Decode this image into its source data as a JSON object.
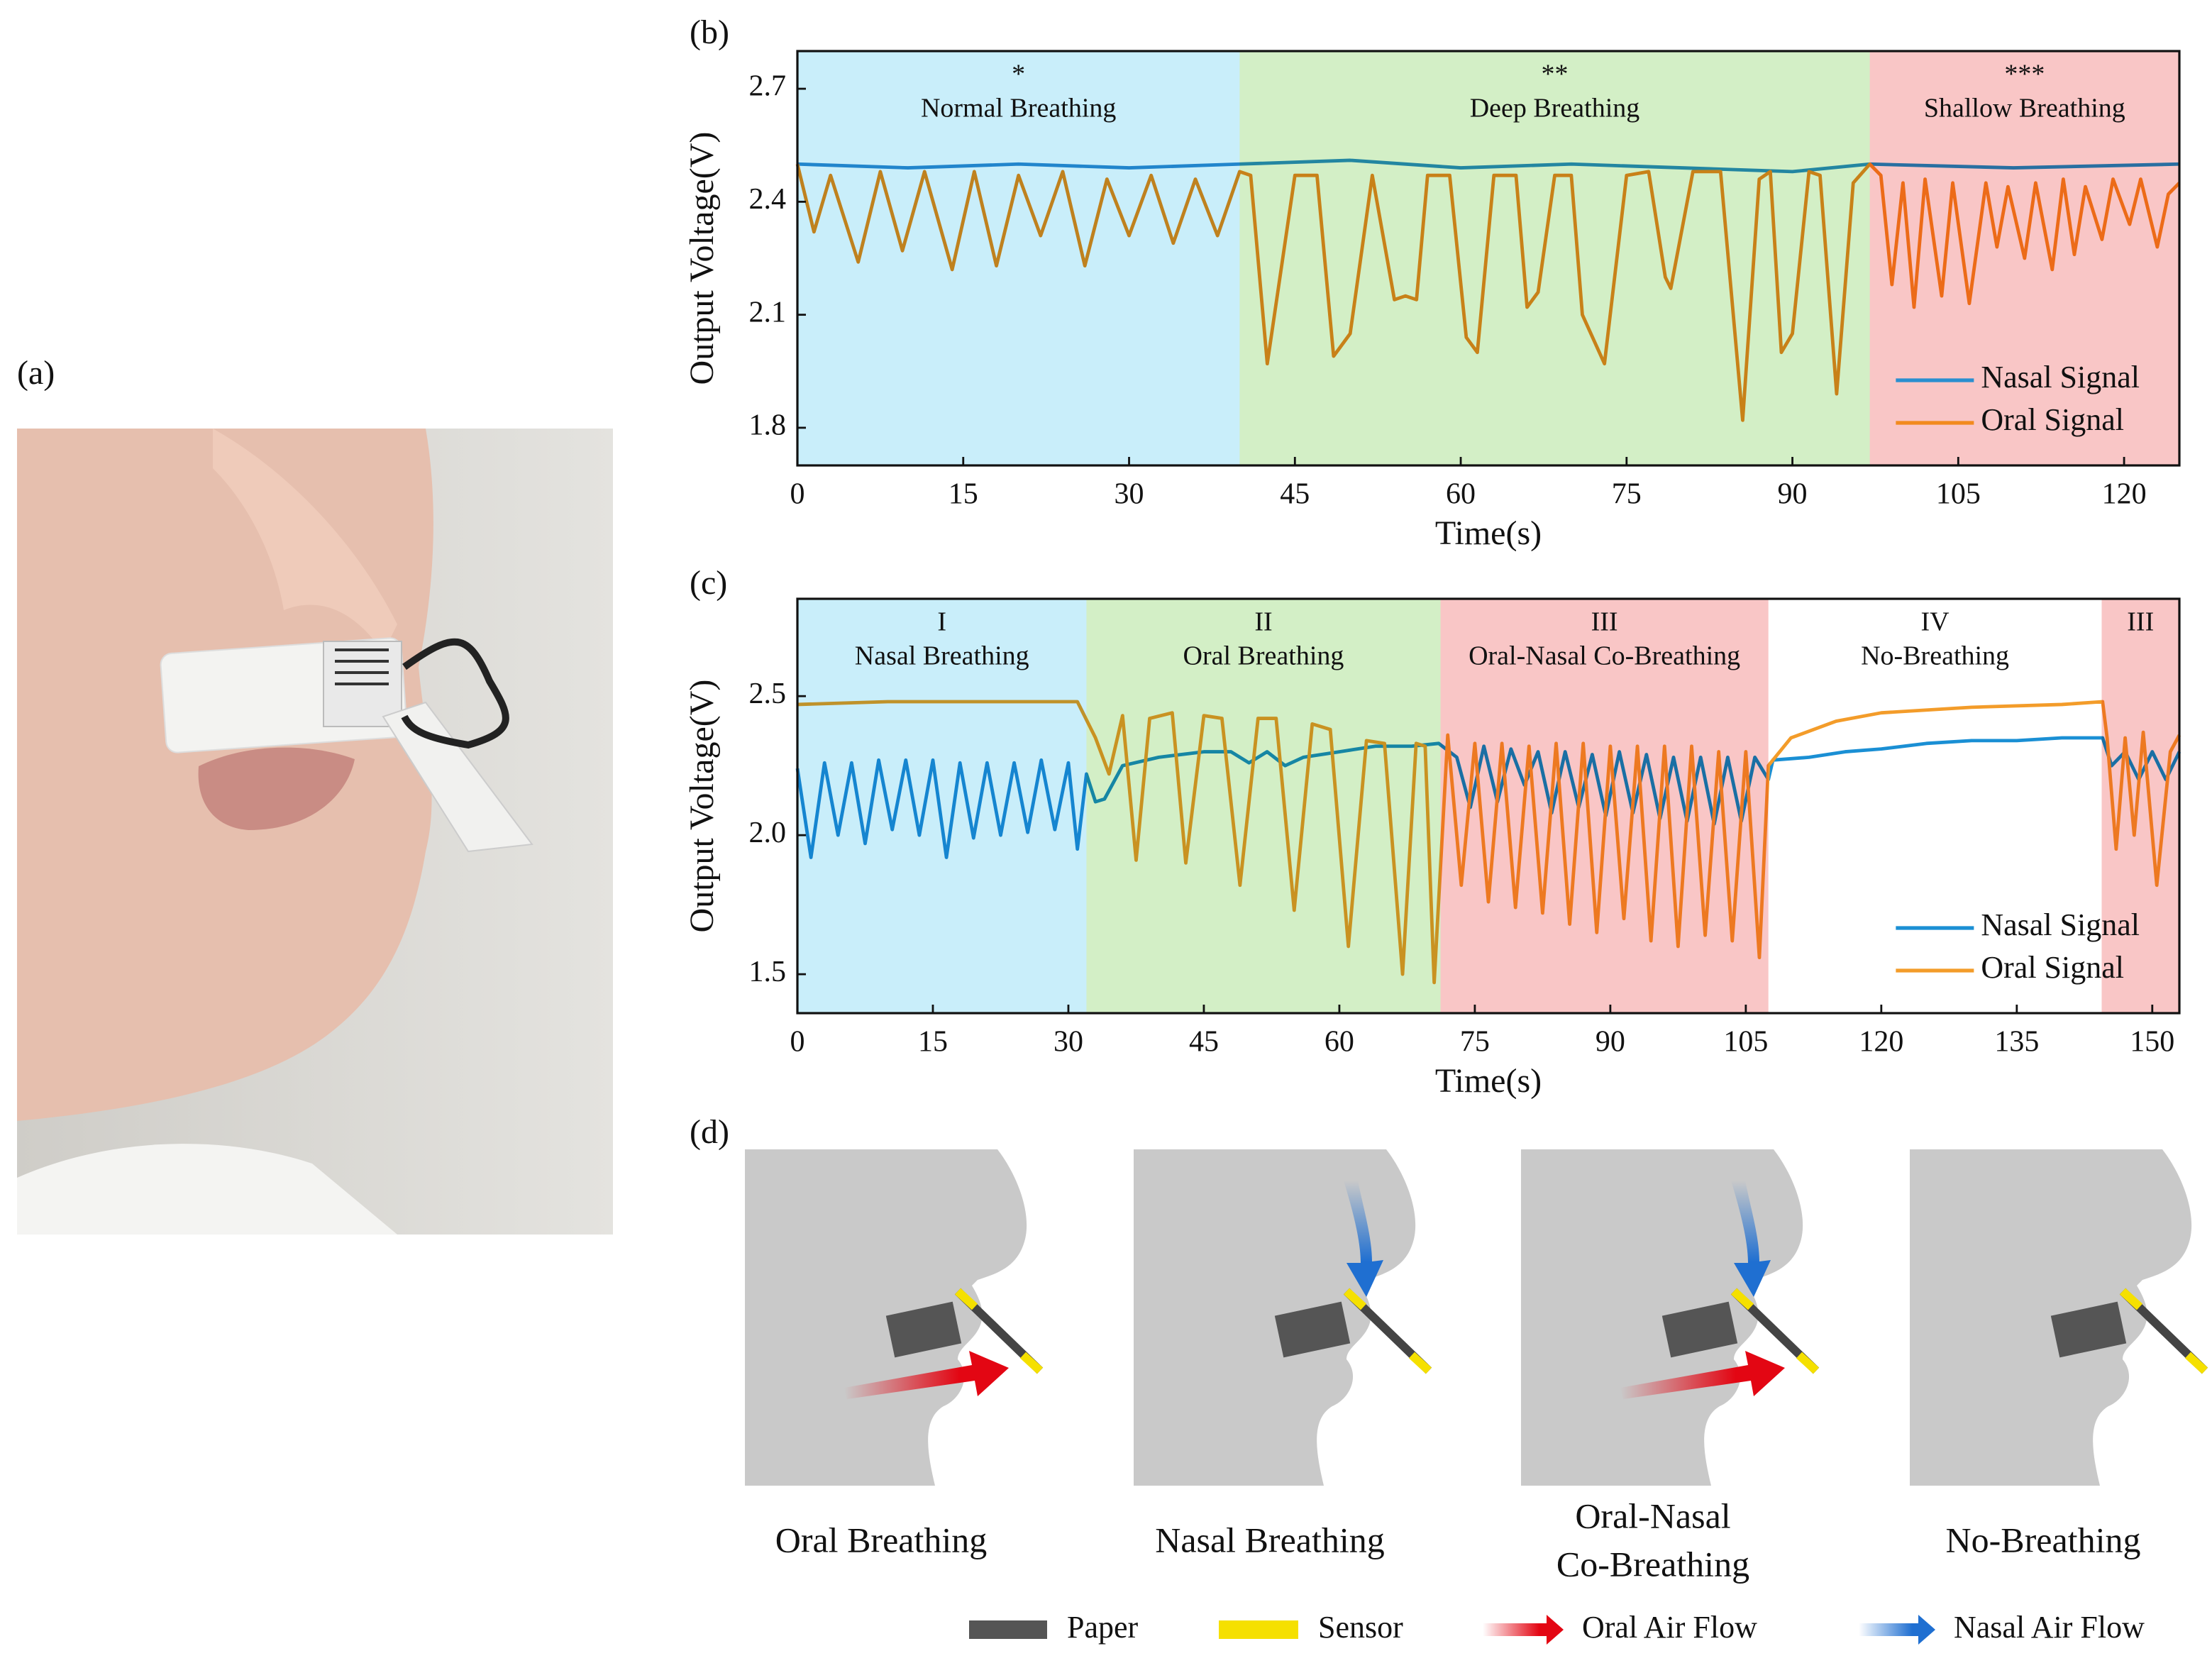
{
  "panels": [
    "(a)",
    "(b)",
    "(c)",
    "(d)"
  ],
  "chart_data": [
    {
      "type": "line",
      "xlabel": "Time(s)",
      "ylabel": "Output Voltage(V)",
      "xlim": [
        0,
        125
      ],
      "ylim": [
        1.7,
        2.8
      ],
      "xticks": [
        0,
        15,
        30,
        45,
        60,
        75,
        90,
        105,
        120
      ],
      "yticks": [
        1.8,
        2.1,
        2.4,
        2.7
      ],
      "legend": "lower right",
      "regions": [
        {
          "start": 0,
          "end": 40,
          "color": "#c9eefa",
          "tag": "*",
          "label": "Normal Breathing"
        },
        {
          "start": 40,
          "end": 97,
          "color": "#d3efc6",
          "tag": "**",
          "label": "Deep Breathing"
        },
        {
          "start": 97,
          "end": 125,
          "color": "#f9c6c6",
          "tag": "***",
          "label": "Shallow Breathing"
        }
      ],
      "series": [
        {
          "name": "Nasal Signal",
          "color": "#2a8fd0",
          "x": [
            0,
            10,
            20,
            30,
            40,
            50,
            60,
            70,
            80,
            90,
            97,
            110,
            125
          ],
          "values": [
            2.5,
            2.49,
            2.5,
            2.49,
            2.5,
            2.51,
            2.49,
            2.5,
            2.49,
            2.48,
            2.5,
            2.49,
            2.5
          ]
        },
        {
          "name": "Oral Signal",
          "color": "#f28a1e",
          "x": [
            0,
            1.5,
            3,
            5.5,
            7.5,
            9.5,
            11.5,
            14,
            16,
            18,
            20,
            22,
            24,
            26,
            28,
            30,
            32,
            34,
            36,
            38,
            40,
            41,
            42.5,
            45,
            47,
            48.5,
            50,
            52,
            54,
            55,
            56,
            57,
            59,
            60.5,
            61.5,
            63,
            65,
            66,
            67,
            68.5,
            70,
            71,
            73,
            75,
            77,
            78.5,
            79,
            81,
            83.5,
            85.5,
            87,
            88,
            89,
            90,
            91.5,
            92.5,
            94,
            95.5,
            97,
            98,
            99,
            100,
            101,
            102,
            103.5,
            104.5,
            106,
            107.5,
            108.5,
            109.5,
            111,
            112,
            113.5,
            114.5,
            115.5,
            116.5,
            118,
            119,
            120.5,
            121.5,
            123,
            124,
            125
          ],
          "values": [
            2.5,
            2.32,
            2.47,
            2.24,
            2.48,
            2.27,
            2.48,
            2.22,
            2.48,
            2.23,
            2.47,
            2.31,
            2.48,
            2.23,
            2.46,
            2.31,
            2.47,
            2.29,
            2.46,
            2.31,
            2.48,
            2.47,
            1.97,
            2.47,
            2.47,
            1.99,
            2.05,
            2.47,
            2.14,
            2.15,
            2.14,
            2.47,
            2.47,
            2.04,
            2.0,
            2.47,
            2.47,
            2.12,
            2.16,
            2.47,
            2.47,
            2.1,
            1.97,
            2.47,
            2.48,
            2.2,
            2.17,
            2.48,
            2.48,
            1.82,
            2.46,
            2.48,
            2.0,
            2.05,
            2.48,
            2.47,
            1.89,
            2.45,
            2.5,
            2.47,
            2.18,
            2.45,
            2.12,
            2.46,
            2.15,
            2.45,
            2.13,
            2.45,
            2.28,
            2.44,
            2.25,
            2.45,
            2.22,
            2.46,
            2.26,
            2.44,
            2.3,
            2.46,
            2.34,
            2.46,
            2.28,
            2.42,
            2.45
          ]
        }
      ]
    },
    {
      "type": "line",
      "xlabel": "Time(s)",
      "ylabel": "Output Voltage(V)",
      "xlim": [
        0,
        153
      ],
      "ylim": [
        1.36,
        2.85
      ],
      "xticks": [
        0,
        15,
        30,
        45,
        60,
        75,
        90,
        105,
        120,
        135,
        150
      ],
      "yticks": [
        1.5,
        {
          "value": 2,
          "label": "2.0"
        },
        2.5
      ],
      "legend": "lower right",
      "regions": [
        {
          "start": 0,
          "end": 32,
          "color": "#c9eefa",
          "tag": "I",
          "label": "Nasal Breathing"
        },
        {
          "start": 32,
          "end": 71.2,
          "color": "#d3efc6",
          "tag": "II",
          "label": "Oral Breathing"
        },
        {
          "start": 71.2,
          "end": 107.5,
          "color": "#f9c6c6",
          "tag": "III",
          "label": "Oral-Nasal Co-Breathing"
        },
        {
          "start": 107.5,
          "end": 144.4,
          "color": "#ffffff",
          "tag": "IV",
          "label": "No-Breathing"
        },
        {
          "start": 144.4,
          "end": 153,
          "color": "#f9c6c6",
          "tag": "III"
        }
      ],
      "series": [
        {
          "name": "Nasal Signal",
          "color": "#1a8fd4",
          "x": [
            0,
            1.5,
            3,
            4.5,
            6,
            7.5,
            9,
            10.5,
            12,
            13.5,
            15,
            16.5,
            18,
            19.5,
            21,
            22.5,
            24,
            25.5,
            27,
            28.5,
            30,
            31,
            32,
            33,
            34,
            36,
            40,
            45,
            48,
            50,
            52,
            54,
            56,
            60,
            64,
            68,
            71,
            73,
            74.5,
            76,
            77.5,
            79,
            80.5,
            82,
            83.5,
            85,
            86.5,
            88,
            89.5,
            91,
            92.5,
            94,
            95.5,
            97,
            98.5,
            100,
            101.5,
            103,
            104.5,
            106,
            107.5,
            108,
            112,
            116,
            120,
            125,
            130,
            135,
            140,
            144.5,
            145.5,
            147,
            148.5,
            150,
            151.5,
            153
          ],
          "values": [
            2.24,
            1.92,
            2.26,
            2.0,
            2.26,
            1.97,
            2.27,
            2.02,
            2.27,
            2.0,
            2.27,
            1.92,
            2.26,
            1.99,
            2.26,
            2.0,
            2.26,
            2.01,
            2.27,
            2.02,
            2.26,
            1.95,
            2.22,
            2.12,
            2.13,
            2.25,
            2.28,
            2.3,
            2.3,
            2.26,
            2.3,
            2.25,
            2.28,
            2.3,
            2.32,
            2.32,
            2.33,
            2.28,
            2.1,
            2.32,
            2.12,
            2.31,
            2.18,
            2.3,
            2.08,
            2.3,
            2.1,
            2.29,
            2.07,
            2.3,
            2.08,
            2.29,
            2.06,
            2.28,
            2.05,
            2.28,
            2.04,
            2.28,
            2.05,
            2.28,
            2.2,
            2.27,
            2.28,
            2.3,
            2.31,
            2.33,
            2.34,
            2.34,
            2.35,
            2.35,
            2.25,
            2.3,
            2.2,
            2.3,
            2.2,
            2.3
          ]
        },
        {
          "name": "Oral Signal",
          "color": "#f39c2a",
          "x": [
            0,
            10,
            20,
            31,
            33,
            34.5,
            36,
            37.5,
            39,
            41.5,
            43,
            45,
            47,
            49,
            51,
            53,
            55,
            57,
            59,
            61,
            63,
            65,
            67,
            68.5,
            69.5,
            70.5,
            72,
            73.5,
            75,
            76.5,
            78,
            79.5,
            81,
            82.5,
            84,
            85.5,
            87,
            88.5,
            90,
            91.5,
            93,
            94.5,
            96,
            97.5,
            99,
            100.5,
            102,
            103.5,
            105,
            106.5,
            107.5,
            110,
            115,
            120,
            130,
            140,
            144.5,
            145,
            146,
            147,
            148,
            149,
            150.5,
            152,
            153
          ],
          "values": [
            2.47,
            2.48,
            2.48,
            2.48,
            2.35,
            2.22,
            2.43,
            1.91,
            2.42,
            2.44,
            1.9,
            2.43,
            2.42,
            1.82,
            2.42,
            2.42,
            1.73,
            2.4,
            2.38,
            1.6,
            2.34,
            2.33,
            1.5,
            2.33,
            2.32,
            1.47,
            2.36,
            1.82,
            2.33,
            1.76,
            2.33,
            1.74,
            2.32,
            1.72,
            2.33,
            1.68,
            2.33,
            1.65,
            2.32,
            1.7,
            2.32,
            1.62,
            2.32,
            1.6,
            2.32,
            1.64,
            2.3,
            1.62,
            2.3,
            1.56,
            2.25,
            2.35,
            2.41,
            2.44,
            2.46,
            2.47,
            2.48,
            2.35,
            1.95,
            2.35,
            2.0,
            2.37,
            1.82,
            2.3,
            2.36
          ]
        }
      ]
    }
  ],
  "diagram": {
    "captions": [
      [
        "Oral Breathing"
      ],
      [
        "Nasal Breathing"
      ],
      [
        "Oral-Nasal",
        "Co-Breathing"
      ],
      [
        "No-Breathing"
      ]
    ],
    "legend": [
      "Paper",
      "Sensor",
      "Oral Air Flow",
      "Nasal Air Flow"
    ]
  }
}
